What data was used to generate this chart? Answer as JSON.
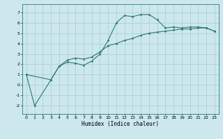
{
  "xlabel": "Humidex (Indice chaleur)",
  "bg_color": "#cce8ee",
  "grid_color": "#aacccc",
  "line_color": "#2d7a6e",
  "xlim": [
    -0.5,
    23.5
  ],
  "ylim": [
    -2.8,
    7.8
  ],
  "xticks": [
    0,
    1,
    2,
    3,
    4,
    5,
    6,
    7,
    8,
    9,
    10,
    11,
    12,
    13,
    14,
    15,
    16,
    17,
    18,
    19,
    20,
    21,
    22,
    23
  ],
  "yticks": [
    -2,
    -1,
    0,
    1,
    2,
    3,
    4,
    5,
    6,
    7
  ],
  "series1_x": [
    0,
    1,
    3,
    4,
    5,
    6,
    7,
    8,
    9,
    10,
    11,
    12,
    13,
    14,
    15,
    16,
    17,
    18,
    19,
    20,
    21,
    22,
    23
  ],
  "series1_y": [
    1,
    -2,
    0.5,
    1.8,
    2.2,
    2.1,
    1.9,
    2.3,
    3.0,
    4.3,
    6.0,
    6.7,
    6.6,
    6.8,
    6.8,
    6.3,
    5.5,
    5.6,
    5.5,
    5.6,
    5.6,
    5.5,
    5.2
  ],
  "series2_x": [
    0,
    3,
    4,
    5,
    6,
    7,
    8,
    9,
    10,
    11,
    12,
    13,
    14,
    15,
    16,
    17,
    18,
    19,
    20,
    21,
    22,
    23
  ],
  "series2_y": [
    1,
    0.5,
    1.8,
    2.4,
    2.6,
    2.5,
    2.7,
    3.2,
    3.8,
    4.0,
    4.3,
    4.5,
    4.8,
    5.0,
    5.1,
    5.2,
    5.3,
    5.4,
    5.4,
    5.5,
    5.5,
    5.2
  ]
}
